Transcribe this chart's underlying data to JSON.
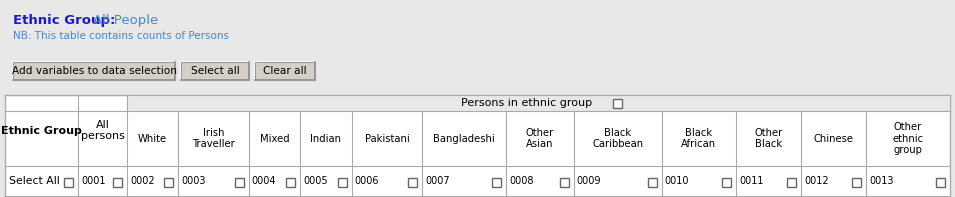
{
  "bg_color": "#e8e8e8",
  "panel_bg": "#e8e8e8",
  "white": "#ffffff",
  "cell_bg": "#f0f0f0",
  "header_bg": "#e8e8e8",
  "blue_dark": "#1a1acc",
  "blue_light": "#4488cc",
  "blue_nb": "#4488cc",
  "text_color": "#000000",
  "title_bold": "Ethnic Group:",
  "title_light": "  All People",
  "nb_text": "NB: This table contains counts of Persons",
  "btn1": "Add variables to data selection",
  "btn2": "Select all",
  "btn3": "Clear all",
  "col_header_span": "Persons in ethnic group",
  "col1": "Ethnic Group",
  "col2": "All\npersons",
  "col_headers": [
    "White",
    "Irish\nTraveller",
    "Mixed",
    "Indian",
    "Pakistani",
    "Bangladeshi",
    "Other\nAsian",
    "Black\nCaribbean",
    "Black\nAfrican",
    "Other\nBlack",
    "Chinese",
    "Other\nethnic\ngroup"
  ],
  "row_label": "Select All",
  "codes": [
    "0001",
    "0002",
    "0003",
    "0004",
    "0005",
    "0006",
    "0007",
    "0008",
    "0009",
    "0010",
    "0011",
    "0012",
    "0013"
  ],
  "figsize": [
    9.55,
    1.97
  ],
  "dpi": 100
}
